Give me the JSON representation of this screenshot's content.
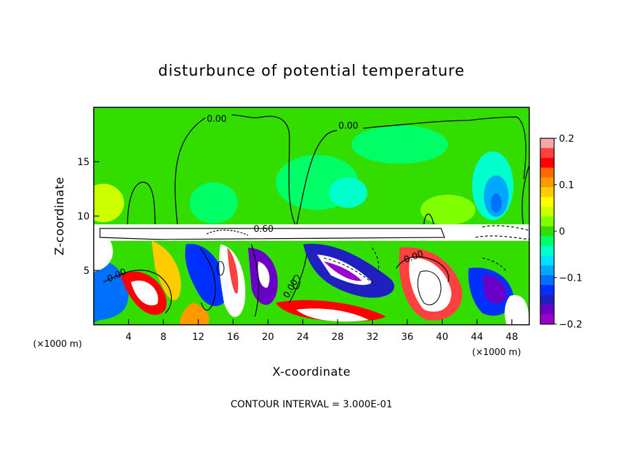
{
  "chart_data": {
    "type": "heatmap",
    "title": "disturbunce of potential temperature",
    "xlabel": "X-coordinate",
    "ylabel": "Z-coordinate",
    "x_unit": "(×1000 m)",
    "x_unit_right": "(×1000 m)",
    "xlim": [
      0,
      50
    ],
    "ylim": [
      0,
      20
    ],
    "x_ticks": [
      4,
      8,
      12,
      16,
      20,
      24,
      28,
      32,
      36,
      40,
      44,
      48
    ],
    "y_ticks": [
      5,
      10,
      15
    ],
    "colorbar": {
      "range": [
        -0.2,
        0.2
      ],
      "ticks": [
        0.2,
        0.1,
        0,
        -0.1,
        -0.2
      ],
      "tick_labels": [
        "0.2",
        "0.1",
        "0",
        "−0.1",
        "−0.2"
      ],
      "colors": [
        "#f7a8a8",
        "#ff4040",
        "#ff0000",
        "#ff6a00",
        "#ff9900",
        "#ffcc00",
        "#ffff00",
        "#ccff00",
        "#80ff00",
        "#33dd00",
        "#00ff66",
        "#00ffcc",
        "#00e0ff",
        "#00a8ff",
        "#0070ff",
        "#0030ff",
        "#2020c0",
        "#6a00c8",
        "#9900cc"
      ]
    },
    "contour_labels": [
      "0.00",
      "0.00",
      "0.00",
      "0.60",
      "0.00",
      "0.00"
    ],
    "grid": false,
    "annotation": "CONTOUR INTERVAL = 3.000E-01"
  }
}
